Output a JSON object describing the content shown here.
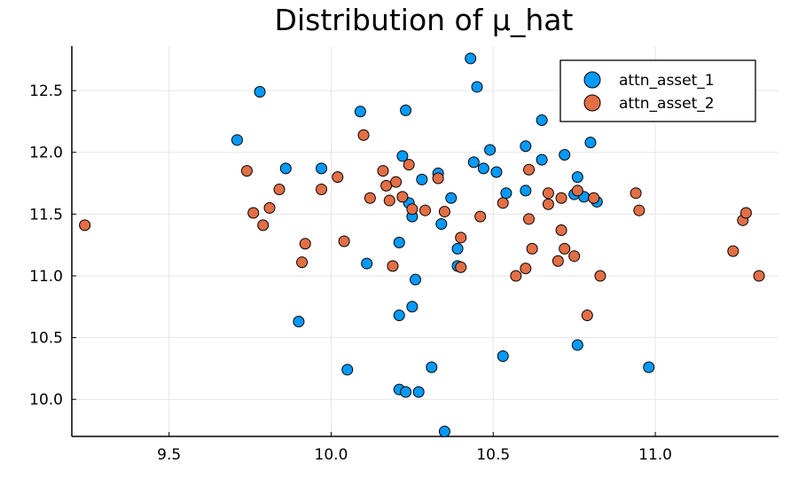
{
  "chart_data": {
    "type": "scatter",
    "title": "Distribution of μ_hat",
    "xlabel": "",
    "ylabel": "",
    "xlim": [
      9.2,
      11.38
    ],
    "ylim": [
      9.7,
      12.86
    ],
    "xticks": [
      9.5,
      10.0,
      10.5,
      11.0
    ],
    "xtick_labels": [
      "9.5",
      "10.0",
      "10.5",
      "11.0"
    ],
    "yticks": [
      10.0,
      10.5,
      11.0,
      11.5,
      12.0,
      12.5
    ],
    "ytick_labels": [
      "10.0",
      "10.5",
      "11.0",
      "11.5",
      "12.0",
      "12.5"
    ],
    "grid": true,
    "legend_position": "top-right",
    "series": [
      {
        "name": "attn_asset_1",
        "color": "#009AFA",
        "x": [
          10.43,
          10.45,
          9.78,
          10.09,
          10.23,
          10.65,
          9.71,
          10.6,
          10.8,
          10.49,
          10.44,
          10.22,
          10.65,
          10.72,
          10.47,
          10.51,
          9.86,
          9.97,
          10.33,
          10.28,
          10.76,
          10.75,
          10.78,
          10.82,
          10.6,
          10.54,
          10.37,
          10.24,
          10.25,
          10.34,
          10.39,
          10.21,
          10.11,
          10.39,
          10.26,
          10.25,
          10.21,
          9.9,
          10.76,
          10.53,
          10.05,
          10.31,
          10.98,
          10.21,
          10.23,
          10.27,
          10.35
        ],
        "y": [
          12.76,
          12.53,
          12.49,
          12.33,
          12.34,
          12.26,
          12.1,
          12.05,
          12.08,
          12.02,
          11.92,
          11.97,
          11.94,
          11.98,
          11.87,
          11.84,
          11.87,
          11.87,
          11.83,
          11.78,
          11.8,
          11.66,
          11.64,
          11.6,
          11.69,
          11.67,
          11.63,
          11.59,
          11.48,
          11.42,
          11.22,
          11.27,
          11.1,
          11.08,
          10.97,
          10.75,
          10.68,
          10.63,
          10.44,
          10.35,
          10.24,
          10.26,
          10.26,
          10.08,
          10.06,
          10.06,
          9.74
        ]
      },
      {
        "name": "attn_asset_2",
        "color": "#E26F46",
        "x": [
          9.24,
          9.74,
          9.76,
          9.79,
          9.81,
          9.84,
          9.91,
          9.92,
          9.97,
          10.02,
          10.04,
          10.1,
          10.12,
          10.16,
          10.17,
          10.18,
          10.19,
          10.2,
          10.22,
          10.24,
          10.25,
          10.29,
          10.33,
          10.35,
          10.4,
          10.4,
          10.46,
          10.53,
          10.57,
          10.6,
          10.61,
          10.62,
          10.61,
          10.67,
          10.67,
          10.7,
          10.71,
          10.71,
          10.72,
          10.75,
          10.76,
          10.79,
          10.81,
          10.83,
          10.94,
          10.95,
          11.24,
          11.27,
          11.28,
          11.32
        ],
        "y": [
          11.41,
          11.85,
          11.51,
          11.41,
          11.55,
          11.7,
          11.11,
          11.26,
          11.7,
          11.8,
          11.28,
          12.14,
          11.63,
          11.85,
          11.73,
          11.61,
          11.08,
          11.76,
          11.64,
          11.9,
          11.54,
          11.53,
          11.79,
          11.52,
          11.31,
          11.07,
          11.48,
          11.59,
          11.0,
          11.06,
          11.46,
          11.22,
          11.86,
          11.58,
          11.67,
          11.12,
          11.63,
          11.37,
          11.22,
          11.16,
          11.69,
          10.68,
          11.63,
          11.0,
          11.67,
          11.53,
          11.2,
          11.45,
          11.51,
          11.0
        ]
      }
    ]
  }
}
